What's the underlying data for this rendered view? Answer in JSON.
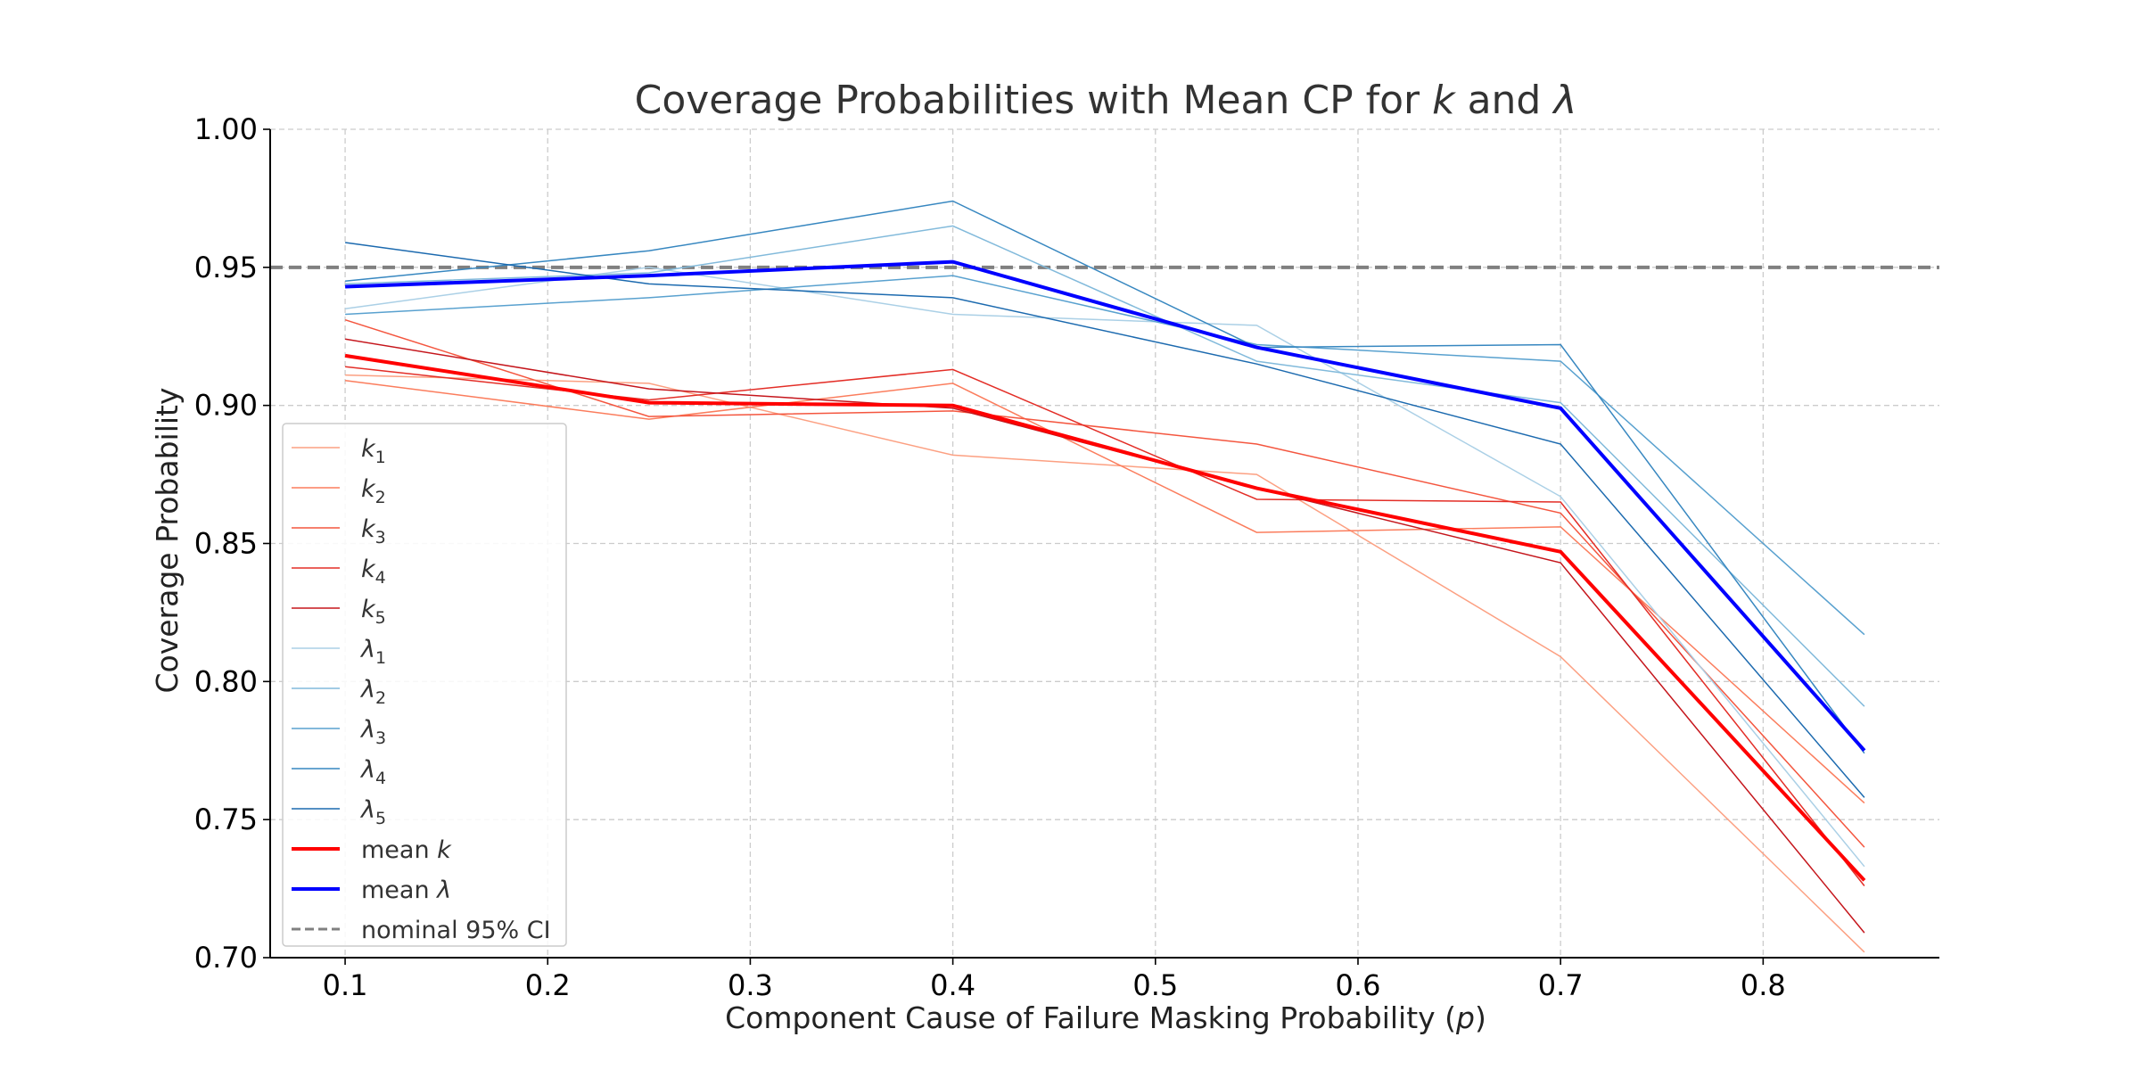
{
  "chart_data": {
    "type": "line",
    "title_prefix": "Coverage Probabilities with Mean CP for ",
    "title_k": "k",
    "title_and": " and ",
    "title_lambda": "λ",
    "xlabel_prefix": "Component Cause of Failure Masking Probability (",
    "xlabel_var": "p",
    "xlabel_suffix": ")",
    "ylabel": "Coverage Probability",
    "x": [
      0.1,
      0.25,
      0.4,
      0.55,
      0.7,
      0.85
    ],
    "xlim": [
      0.063,
      0.887
    ],
    "ylim": [
      0.7,
      1.0
    ],
    "xticks": [
      0.1,
      0.2,
      0.3,
      0.4,
      0.5,
      0.6,
      0.7,
      0.8
    ],
    "xtick_labels": [
      "0.1",
      "0.2",
      "0.3",
      "0.4",
      "0.5",
      "0.6",
      "0.7",
      "0.8"
    ],
    "yticks": [
      0.7,
      0.75,
      0.8,
      0.85,
      0.9,
      0.95,
      1.0
    ],
    "ytick_labels": [
      "0.70",
      "0.75",
      "0.80",
      "0.85",
      "0.90",
      "0.95",
      "1.00"
    ],
    "grid": true,
    "legend_position": "lower-left",
    "series": [
      {
        "name": "k",
        "sub": "1",
        "color": "#fca082",
        "width": 1.5,
        "values": [
          0.911,
          0.908,
          0.882,
          0.875,
          0.809,
          0.702
        ]
      },
      {
        "name": "k",
        "sub": "2",
        "color": "#fb7d5d",
        "width": 1.5,
        "values": [
          0.909,
          0.895,
          0.908,
          0.854,
          0.856,
          0.756
        ]
      },
      {
        "name": "k",
        "sub": "3",
        "color": "#f4563f",
        "width": 1.5,
        "values": [
          0.931,
          0.896,
          0.898,
          0.886,
          0.861,
          0.74
        ]
      },
      {
        "name": "k",
        "sub": "4",
        "color": "#e32e27",
        "width": 1.5,
        "values": [
          0.914,
          0.902,
          0.913,
          0.866,
          0.865,
          0.726
        ]
      },
      {
        "name": "k",
        "sub": "5",
        "color": "#c5161c",
        "width": 1.5,
        "values": [
          0.924,
          0.906,
          0.899,
          0.87,
          0.843,
          0.709
        ]
      },
      {
        "name": "λ",
        "sub": "1",
        "color": "#abd0e6",
        "width": 1.5,
        "values": [
          0.935,
          0.95,
          0.933,
          0.929,
          0.867,
          0.733
        ]
      },
      {
        "name": "λ",
        "sub": "2",
        "color": "#82badb",
        "width": 1.5,
        "values": [
          0.944,
          0.948,
          0.965,
          0.916,
          0.901,
          0.791
        ]
      },
      {
        "name": "λ",
        "sub": "3",
        "color": "#59a1cf",
        "width": 1.5,
        "values": [
          0.933,
          0.939,
          0.947,
          0.922,
          0.916,
          0.817
        ]
      },
      {
        "name": "λ",
        "sub": "4",
        "color": "#3787c0",
        "width": 1.5,
        "values": [
          0.945,
          0.956,
          0.974,
          0.921,
          0.922,
          0.774
        ]
      },
      {
        "name": "λ",
        "sub": "5",
        "color": "#1c6aaf",
        "width": 1.5,
        "values": [
          0.959,
          0.944,
          0.939,
          0.915,
          0.886,
          0.758
        ]
      },
      {
        "name": "mean k",
        "sub": "",
        "color": "#ff0000",
        "width": 4,
        "values": [
          0.918,
          0.901,
          0.9,
          0.87,
          0.847,
          0.728
        ]
      },
      {
        "name": "mean λ",
        "sub": "",
        "color": "#0000ff",
        "width": 4,
        "values": [
          0.943,
          0.947,
          0.952,
          0.921,
          0.899,
          0.775
        ]
      }
    ],
    "reference_line": {
      "name": "nominal 95% CI",
      "y": 0.95,
      "color": "#808080"
    },
    "legend": [
      {
        "var": "k",
        "sub": "1",
        "prefix": "",
        "color": "#fca082",
        "width": 1.5,
        "dashed": false
      },
      {
        "var": "k",
        "sub": "2",
        "prefix": "",
        "color": "#fb7d5d",
        "width": 1.5,
        "dashed": false
      },
      {
        "var": "k",
        "sub": "3",
        "prefix": "",
        "color": "#f4563f",
        "width": 1.5,
        "dashed": false
      },
      {
        "var": "k",
        "sub": "4",
        "prefix": "",
        "color": "#e32e27",
        "width": 1.5,
        "dashed": false
      },
      {
        "var": "k",
        "sub": "5",
        "prefix": "",
        "color": "#c5161c",
        "width": 1.5,
        "dashed": false
      },
      {
        "var": "λ",
        "sub": "1",
        "prefix": "",
        "color": "#abd0e6",
        "width": 1.5,
        "dashed": false
      },
      {
        "var": "λ",
        "sub": "2",
        "prefix": "",
        "color": "#82badb",
        "width": 1.5,
        "dashed": false
      },
      {
        "var": "λ",
        "sub": "3",
        "prefix": "",
        "color": "#59a1cf",
        "width": 1.5,
        "dashed": false
      },
      {
        "var": "λ",
        "sub": "4",
        "prefix": "",
        "color": "#3787c0",
        "width": 1.5,
        "dashed": false
      },
      {
        "var": "λ",
        "sub": "5",
        "prefix": "",
        "color": "#1c6aaf",
        "width": 1.5,
        "dashed": false
      },
      {
        "var": "k",
        "sub": "",
        "prefix": "mean ",
        "color": "#ff0000",
        "width": 4,
        "dashed": false
      },
      {
        "var": "λ",
        "sub": "",
        "prefix": "mean ",
        "color": "#0000ff",
        "width": 4,
        "dashed": false
      },
      {
        "var": "",
        "sub": "",
        "prefix": "nominal 95% CI",
        "color": "#808080",
        "width": 3,
        "dashed": true
      }
    ]
  }
}
